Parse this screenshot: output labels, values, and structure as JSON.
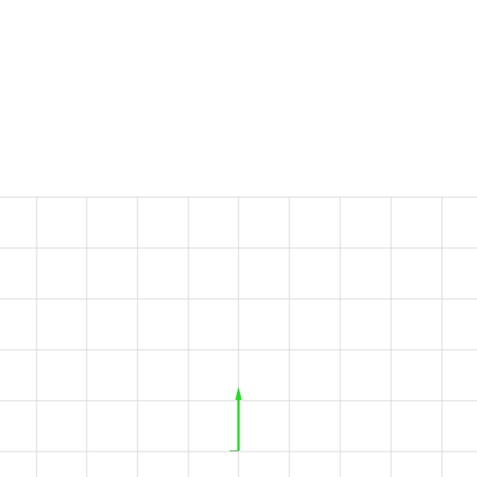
{
  "viewport": {
    "background_color": "#ffffff",
    "grid": {
      "visible": true,
      "line_color": "#d4d4d4"
    },
    "axis_indicator": {
      "icon": "up-arrow-icon",
      "color": "#22dd22",
      "origin_tick_color": "#7fbf7f"
    }
  }
}
